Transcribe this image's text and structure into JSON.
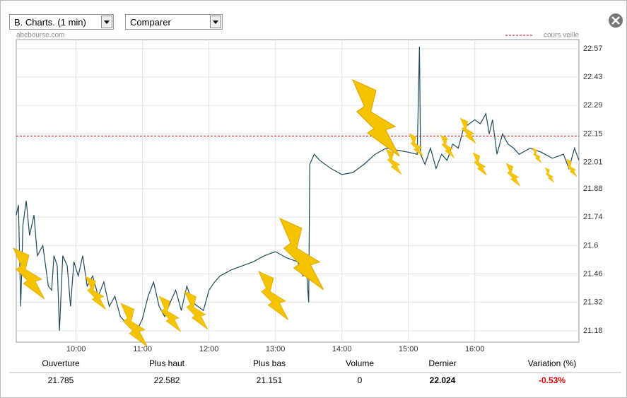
{
  "controls": {
    "period_select": "B. Charts. (1 min)",
    "compare_select": "Comparer",
    "source": "abcbourse.com"
  },
  "chart_data": {
    "type": "line",
    "color": "#1f4a5a",
    "x": [
      546,
      548,
      550,
      552,
      555,
      558,
      562,
      565,
      570,
      575,
      578,
      580,
      583,
      585,
      588,
      592,
      595,
      598,
      602,
      606,
      610,
      615,
      620,
      625,
      630,
      635,
      640,
      645,
      650,
      655,
      660,
      665,
      670,
      675,
      680,
      685,
      690,
      695,
      700,
      705,
      710,
      715,
      720,
      725,
      730,
      740,
      750,
      760,
      770,
      780,
      790,
      800,
      805,
      808,
      810,
      811,
      815,
      820,
      830,
      840,
      850,
      860,
      870,
      880,
      890,
      900,
      908,
      910,
      911,
      915,
      920,
      925,
      930,
      935,
      940,
      945,
      950,
      955,
      960,
      965,
      970,
      973,
      976,
      980,
      985,
      990,
      995,
      1000,
      1010,
      1020,
      1030,
      1040,
      1045,
      1050,
      1054
    ],
    "values": [
      21.75,
      21.8,
      21.3,
      21.7,
      21.82,
      21.65,
      21.75,
      21.55,
      21.6,
      21.4,
      21.38,
      21.55,
      21.5,
      21.18,
      21.55,
      21.5,
      21.3,
      21.52,
      21.45,
      21.55,
      21.4,
      21.45,
      21.35,
      21.42,
      21.3,
      21.35,
      21.25,
      21.22,
      21.2,
      21.18,
      21.24,
      21.35,
      21.42,
      21.3,
      21.25,
      21.32,
      21.38,
      21.28,
      21.4,
      21.32,
      21.3,
      21.28,
      21.38,
      21.42,
      21.45,
      21.48,
      21.5,
      21.52,
      21.55,
      21.57,
      21.54,
      21.52,
      21.45,
      21.48,
      21.32,
      22.0,
      22.05,
      22.02,
      21.98,
      21.95,
      21.96,
      22.0,
      22.05,
      22.08,
      22.07,
      22.06,
      22.05,
      22.58,
      22.05,
      22.0,
      22.08,
      21.98,
      22.05,
      22.02,
      22.1,
      22.08,
      22.18,
      22.2,
      22.22,
      22.2,
      22.25,
      22.15,
      22.22,
      22.05,
      22.15,
      22.1,
      22.08,
      22.05,
      22.08,
      22.06,
      22.03,
      22.05,
      21.98,
      22.08,
      22.02
    ],
    "xlim": [
      546,
      1054
    ],
    "xticks": [
      {
        "value": 600,
        "label": "10:00"
      },
      {
        "value": 660,
        "label": "11:00"
      },
      {
        "value": 720,
        "label": "12:00"
      },
      {
        "value": 780,
        "label": "13:00"
      },
      {
        "value": 840,
        "label": "14:00"
      },
      {
        "value": 900,
        "label": "15:00"
      },
      {
        "value": 960,
        "label": "16:00"
      }
    ],
    "ylim": [
      21.124,
      22.615
    ],
    "yticks": [
      21.18,
      21.32,
      21.46,
      21.6,
      21.74,
      21.88,
      22.01,
      22.15,
      22.29,
      22.43,
      22.57
    ],
    "grid": true,
    "reference_line": {
      "value": 22.14,
      "label": "cours veille",
      "color": "#cc0000"
    }
  },
  "stats": {
    "headers": [
      "Ouverture",
      "Plus haut",
      "Plus bas",
      "Volume",
      "Dernier",
      "Variation (%)"
    ],
    "values": [
      "21.785",
      "22.582",
      "21.151",
      "0",
      "22.024",
      "-0.53%"
    ]
  }
}
